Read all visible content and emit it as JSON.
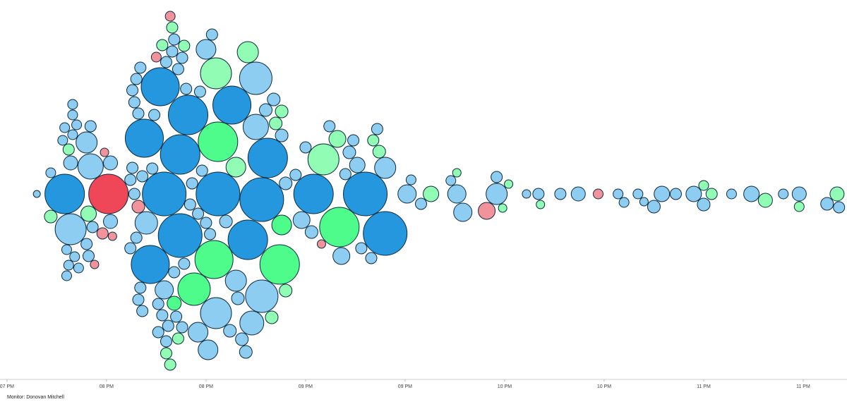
{
  "chart_data": {
    "type": "beeswarm",
    "caption": "Monitor: Donovan Mitchell",
    "xlim": [
      18.965,
      23.22
    ],
    "xticks": [
      {
        "value": 19,
        "label": "07 PM"
      },
      {
        "value": 19.5,
        "label": "08 PM"
      },
      {
        "value": 20,
        "label": "08 PM"
      },
      {
        "value": 20.5,
        "label": "09 PM"
      },
      {
        "value": 21,
        "label": "09 PM"
      },
      {
        "value": 21.5,
        "label": "10 PM"
      },
      {
        "value": 22,
        "label": "10 PM"
      },
      {
        "value": 22.5,
        "label": "11 PM"
      },
      {
        "value": 23,
        "label": "11 PM"
      }
    ],
    "points": [
      {
        "x": 19.15,
        "size": 5,
        "color": "#8ecdf2"
      },
      {
        "x": 19.22,
        "size": 9,
        "color": "#90fcb4"
      },
      {
        "x": 19.22,
        "size": 7,
        "color": "#8ecdf2"
      },
      {
        "x": 19.29,
        "size": 28,
        "color": "#2497de"
      },
      {
        "x": 19.32,
        "size": 10,
        "color": "#8ecdf2"
      },
      {
        "x": 19.31,
        "size": 8,
        "color": "#90fcb4"
      },
      {
        "x": 19.32,
        "size": 22,
        "color": "#8ecdf2"
      },
      {
        "x": 19.28,
        "size": 7,
        "color": "#8ecdf2"
      },
      {
        "x": 19.3,
        "size": 7,
        "color": "#8ecdf2"
      },
      {
        "x": 19.33,
        "size": 7,
        "color": "#8ecdf2"
      },
      {
        "x": 19.34,
        "size": 7,
        "color": "#8ecdf2"
      },
      {
        "x": 19.35,
        "size": 7,
        "color": "#8ecdf2"
      },
      {
        "x": 19.31,
        "size": 7,
        "color": "#8ecdf2"
      },
      {
        "x": 19.29,
        "size": 7,
        "color": "#8ecdf2"
      },
      {
        "x": 19.33,
        "size": 7,
        "color": "#8ecdf2"
      },
      {
        "x": 19.36,
        "size": 7,
        "color": "#8ecdf2"
      },
      {
        "x": 19.3,
        "size": 7,
        "color": "#8ecdf2"
      },
      {
        "x": 19.33,
        "size": 7,
        "color": "#8ecdf2"
      },
      {
        "x": 19.41,
        "size": 11,
        "color": "#90fcb4"
      },
      {
        "x": 19.4,
        "size": 15,
        "color": "#8ecdf2"
      },
      {
        "x": 19.42,
        "size": 18,
        "color": "#8ecdf2"
      },
      {
        "x": 19.4,
        "size": 8,
        "color": "#8ecdf2"
      },
      {
        "x": 19.41,
        "size": 8,
        "color": "#8ecdf2"
      },
      {
        "x": 19.42,
        "size": 8,
        "color": "#8ecdf2"
      },
      {
        "x": 19.43,
        "size": 8,
        "color": "#8ecdf2"
      },
      {
        "x": 19.51,
        "size": 28,
        "color": "#f04758"
      },
      {
        "x": 19.52,
        "size": 10,
        "color": "#8ecdf2"
      },
      {
        "x": 19.52,
        "size": 10,
        "color": "#8ecdf2"
      },
      {
        "x": 19.48,
        "size": 8,
        "color": "#f2939c"
      },
      {
        "x": 19.53,
        "size": 6,
        "color": "#f2939c"
      },
      {
        "x": 19.44,
        "size": 6,
        "color": "#f2939c"
      },
      {
        "x": 19.49,
        "size": 6,
        "color": "#f2939c"
      },
      {
        "x": 19.62,
        "size": 8,
        "color": "#8ecdf2"
      },
      {
        "x": 19.63,
        "size": 8,
        "color": "#8ecdf2"
      },
      {
        "x": 19.64,
        "size": 8,
        "color": "#8ecdf2"
      },
      {
        "x": 19.65,
        "size": 8,
        "color": "#8ecdf2"
      },
      {
        "x": 19.66,
        "size": 8,
        "color": "#8ecdf2"
      },
      {
        "x": 19.67,
        "size": 8,
        "color": "#8ecdf2"
      },
      {
        "x": 19.68,
        "size": 8,
        "color": "#8ecdf2"
      },
      {
        "x": 19.62,
        "size": 8,
        "color": "#8ecdf2"
      },
      {
        "x": 19.64,
        "size": 8,
        "color": "#8ecdf2"
      },
      {
        "x": 19.66,
        "size": 8,
        "color": "#8ecdf2"
      },
      {
        "x": 19.68,
        "size": 8,
        "color": "#8ecdf2"
      },
      {
        "x": 19.63,
        "size": 8,
        "color": "#8ecdf2"
      },
      {
        "x": 19.65,
        "size": 8,
        "color": "#8ecdf2"
      },
      {
        "x": 19.67,
        "size": 8,
        "color": "#8ecdf2"
      },
      {
        "x": 19.66,
        "size": 9,
        "color": "#f2939c"
      },
      {
        "x": 19.69,
        "size": 27,
        "color": "#2497de"
      },
      {
        "x": 19.72,
        "size": 27,
        "color": "#2497de"
      },
      {
        "x": 19.77,
        "size": 27,
        "color": "#2497de"
      },
      {
        "x": 19.79,
        "size": 31,
        "color": "#2497de"
      },
      {
        "x": 19.87,
        "size": 31,
        "color": "#2497de"
      },
      {
        "x": 19.87,
        "size": 28,
        "color": "#2497de"
      },
      {
        "x": 19.91,
        "size": 28,
        "color": "#2497de"
      },
      {
        "x": 19.7,
        "size": 16,
        "color": "#8ecdf2"
      },
      {
        "x": 19.79,
        "size": 13,
        "color": "#8ecdf2"
      },
      {
        "x": 19.75,
        "size": 7,
        "color": "#f2939c"
      },
      {
        "x": 19.82,
        "size": 7,
        "color": "#f2939c"
      },
      {
        "x": 19.73,
        "size": 8,
        "color": "#8ecdf2"
      },
      {
        "x": 19.74,
        "size": 8,
        "color": "#8ecdf2"
      },
      {
        "x": 19.76,
        "size": 8,
        "color": "#8ecdf2"
      },
      {
        "x": 19.78,
        "size": 8,
        "color": "#8ecdf2"
      },
      {
        "x": 19.8,
        "size": 8,
        "color": "#8ecdf2"
      },
      {
        "x": 19.81,
        "size": 8,
        "color": "#8ecdf2"
      },
      {
        "x": 19.83,
        "size": 8,
        "color": "#8ecdf2"
      },
      {
        "x": 19.84,
        "size": 8,
        "color": "#8ecdf2"
      },
      {
        "x": 19.85,
        "size": 8,
        "color": "#8ecdf2"
      },
      {
        "x": 19.86,
        "size": 8,
        "color": "#8ecdf2"
      },
      {
        "x": 19.88,
        "size": 8,
        "color": "#8ecdf2"
      },
      {
        "x": 19.89,
        "size": 8,
        "color": "#8ecdf2"
      },
      {
        "x": 19.9,
        "size": 8,
        "color": "#8ecdf2"
      },
      {
        "x": 19.92,
        "size": 8,
        "color": "#8ecdf2"
      },
      {
        "x": 19.93,
        "size": 8,
        "color": "#8ecdf2"
      },
      {
        "x": 19.76,
        "size": 8,
        "color": "#8ecdf2"
      },
      {
        "x": 19.8,
        "size": 8,
        "color": "#8ecdf2"
      },
      {
        "x": 19.84,
        "size": 8,
        "color": "#8ecdf2"
      },
      {
        "x": 19.88,
        "size": 8,
        "color": "#8ecdf2"
      },
      {
        "x": 19.8,
        "size": 8,
        "color": "#90fcb4"
      },
      {
        "x": 19.83,
        "size": 8,
        "color": "#90fcb4"
      },
      {
        "x": 19.86,
        "size": 8,
        "color": "#90fcb4"
      },
      {
        "x": 19.89,
        "size": 8,
        "color": "#90fcb4"
      },
      {
        "x": 19.78,
        "size": 8,
        "color": "#90fcb4"
      },
      {
        "x": 19.82,
        "size": 8,
        "color": "#90fcb4"
      },
      {
        "x": 19.84,
        "size": 10,
        "color": "#4dfc8a"
      },
      {
        "x": 19.94,
        "size": 23,
        "color": "#4dfc8a"
      },
      {
        "x": 20.04,
        "size": 27,
        "color": "#4dfc8a"
      },
      {
        "x": 19.96,
        "size": 14,
        "color": "#8ecdf2"
      },
      {
        "x": 20.0,
        "size": 14,
        "color": "#8ecdf2"
      },
      {
        "x": 20.01,
        "size": 14,
        "color": "#8ecdf2"
      },
      {
        "x": 19.96,
        "size": 8,
        "color": "#8ecdf2"
      },
      {
        "x": 19.98,
        "size": 8,
        "color": "#8ecdf2"
      },
      {
        "x": 20.0,
        "size": 8,
        "color": "#8ecdf2"
      },
      {
        "x": 20.02,
        "size": 8,
        "color": "#8ecdf2"
      },
      {
        "x": 19.97,
        "size": 8,
        "color": "#8ecdf2"
      },
      {
        "x": 20.03,
        "size": 8,
        "color": "#8ecdf2"
      },
      {
        "x": 20.13,
        "size": 27,
        "color": "#2497de"
      },
      {
        "x": 20.31,
        "size": 28,
        "color": "#2497de"
      },
      {
        "x": 20.06,
        "size": 31,
        "color": "#2497de"
      },
      {
        "x": 20.28,
        "size": 31,
        "color": "#2497de"
      },
      {
        "x": 20.21,
        "size": 28,
        "color": "#2497de"
      },
      {
        "x": 20.28,
        "size": 23,
        "color": "#8ecdf2"
      },
      {
        "x": 20.05,
        "size": 22,
        "color": "#8ecdf2"
      },
      {
        "x": 20.25,
        "size": 23,
        "color": "#8ecdf2"
      },
      {
        "x": 20.25,
        "size": 18,
        "color": "#8ecdf2"
      },
      {
        "x": 20.23,
        "size": 17,
        "color": "#8ecdf2"
      },
      {
        "x": 20.15,
        "size": 15,
        "color": "#8ecdf2"
      },
      {
        "x": 20.37,
        "size": 28,
        "color": "#4dfc8a"
      },
      {
        "x": 20.06,
        "size": 28,
        "color": "#4dfc8a"
      },
      {
        "x": 20.05,
        "size": 22,
        "color": "#90fcb4"
      },
      {
        "x": 20.15,
        "size": 14,
        "color": "#90fcb4"
      },
      {
        "x": 20.21,
        "size": 15,
        "color": "#90fcb4"
      },
      {
        "x": 20.1,
        "size": 9,
        "color": "#8ecdf2"
      },
      {
        "x": 20.12,
        "size": 9,
        "color": "#8ecdf2"
      },
      {
        "x": 20.18,
        "size": 9,
        "color": "#8ecdf2"
      },
      {
        "x": 20.2,
        "size": 9,
        "color": "#8ecdf2"
      },
      {
        "x": 20.3,
        "size": 9,
        "color": "#8ecdf2"
      },
      {
        "x": 20.34,
        "size": 9,
        "color": "#8ecdf2"
      },
      {
        "x": 20.38,
        "size": 9,
        "color": "#8ecdf2"
      },
      {
        "x": 20.4,
        "size": 9,
        "color": "#8ecdf2"
      },
      {
        "x": 20.16,
        "size": 9,
        "color": "#8ecdf2"
      },
      {
        "x": 20.35,
        "size": 9,
        "color": "#90fcb4"
      },
      {
        "x": 20.38,
        "size": 9,
        "color": "#90fcb4"
      },
      {
        "x": 20.4,
        "size": 9,
        "color": "#90fcb4"
      },
      {
        "x": 20.33,
        "size": 9,
        "color": "#90fcb4"
      },
      {
        "x": 20.38,
        "size": 14,
        "color": "#4dfc8a"
      },
      {
        "x": 20.54,
        "size": 28,
        "color": "#2497de"
      },
      {
        "x": 20.8,
        "size": 31,
        "color": "#2497de"
      },
      {
        "x": 20.9,
        "size": 31,
        "color": "#2497de"
      },
      {
        "x": 20.67,
        "size": 28,
        "color": "#4dfc8a"
      },
      {
        "x": 20.59,
        "size": 22,
        "color": "#90fcb4"
      },
      {
        "x": 20.66,
        "size": 12,
        "color": "#90fcb4"
      },
      {
        "x": 20.9,
        "size": 15,
        "color": "#8ecdf2"
      },
      {
        "x": 20.68,
        "size": 12,
        "color": "#8ecdf2"
      },
      {
        "x": 20.76,
        "size": 11,
        "color": "#8ecdf2"
      },
      {
        "x": 20.48,
        "size": 12,
        "color": "#8ecdf2"
      },
      {
        "x": 20.72,
        "size": 9,
        "color": "#8ecdf2"
      },
      {
        "x": 20.53,
        "size": 9,
        "color": "#8ecdf2"
      },
      {
        "x": 20.58,
        "size": 6,
        "color": "#f2939c"
      },
      {
        "x": 20.84,
        "size": 8,
        "color": "#90fcb4"
      },
      {
        "x": 20.87,
        "size": 9,
        "color": "#90fcb4"
      },
      {
        "x": 20.45,
        "size": 8,
        "color": "#8ecdf2"
      },
      {
        "x": 20.5,
        "size": 8,
        "color": "#8ecdf2"
      },
      {
        "x": 20.62,
        "size": 8,
        "color": "#8ecdf2"
      },
      {
        "x": 20.7,
        "size": 8,
        "color": "#8ecdf2"
      },
      {
        "x": 20.74,
        "size": 8,
        "color": "#8ecdf2"
      },
      {
        "x": 20.78,
        "size": 8,
        "color": "#8ecdf2"
      },
      {
        "x": 20.83,
        "size": 8,
        "color": "#8ecdf2"
      },
      {
        "x": 20.86,
        "size": 8,
        "color": "#8ecdf2"
      },
      {
        "x": 21.01,
        "size": 13,
        "color": "#8ecdf2"
      },
      {
        "x": 21.08,
        "size": 8,
        "color": "#8ecdf2"
      },
      {
        "x": 21.13,
        "size": 11,
        "color": "#90fcb4"
      },
      {
        "x": 21.03,
        "size": 7,
        "color": "#8ecdf2"
      },
      {
        "x": 21.23,
        "size": 7,
        "color": "#8ecdf2"
      },
      {
        "x": 21.26,
        "size": 13,
        "color": "#8ecdf2"
      },
      {
        "x": 21.26,
        "size": 6,
        "color": "#90fcb4"
      },
      {
        "x": 21.29,
        "size": 13,
        "color": "#8ecdf2"
      },
      {
        "x": 21.41,
        "size": 12,
        "color": "#f2939c"
      },
      {
        "x": 21.46,
        "size": 15,
        "color": "#8ecdf2"
      },
      {
        "x": 21.46,
        "size": 8,
        "color": "#8ecdf2"
      },
      {
        "x": 21.49,
        "size": 6,
        "color": "#90fcb4"
      },
      {
        "x": 21.52,
        "size": 6,
        "color": "#90fcb4"
      },
      {
        "x": 21.61,
        "size": 6,
        "color": "#8ecdf2"
      },
      {
        "x": 21.67,
        "size": 8,
        "color": "#8ecdf2"
      },
      {
        "x": 21.68,
        "size": 6,
        "color": "#90fcb4"
      },
      {
        "x": 21.78,
        "size": 8,
        "color": "#8ecdf2"
      },
      {
        "x": 21.87,
        "size": 10,
        "color": "#8ecdf2"
      },
      {
        "x": 21.97,
        "size": 7,
        "color": "#f2939c"
      },
      {
        "x": 22.07,
        "size": 7,
        "color": "#8ecdf2"
      },
      {
        "x": 22.1,
        "size": 7,
        "color": "#8ecdf2"
      },
      {
        "x": 22.17,
        "size": 7,
        "color": "#8ecdf2"
      },
      {
        "x": 22.2,
        "size": 6,
        "color": "#8ecdf2"
      },
      {
        "x": 22.25,
        "size": 9,
        "color": "#8ecdf2"
      },
      {
        "x": 22.29,
        "size": 11,
        "color": "#8ecdf2"
      },
      {
        "x": 22.36,
        "size": 8,
        "color": "#8ecdf2"
      },
      {
        "x": 22.45,
        "size": 11,
        "color": "#8ecdf2"
      },
      {
        "x": 22.5,
        "size": 9,
        "color": "#8ecdf2"
      },
      {
        "x": 22.5,
        "size": 7,
        "color": "#90fcb4"
      },
      {
        "x": 22.54,
        "size": 8,
        "color": "#90fcb4"
      },
      {
        "x": 22.64,
        "size": 7,
        "color": "#8ecdf2"
      },
      {
        "x": 22.74,
        "size": 11,
        "color": "#8ecdf2"
      },
      {
        "x": 22.81,
        "size": 10,
        "color": "#90fcb4"
      },
      {
        "x": 22.9,
        "size": 7,
        "color": "#8ecdf2"
      },
      {
        "x": 22.98,
        "size": 10,
        "color": "#8ecdf2"
      },
      {
        "x": 22.98,
        "size": 7,
        "color": "#90fcb4"
      },
      {
        "x": 23.12,
        "size": 9,
        "color": "#8ecdf2"
      },
      {
        "x": 23.17,
        "size": 10,
        "color": "#90fcb4"
      },
      {
        "x": 23.18,
        "size": 8,
        "color": "#8ecdf2"
      }
    ]
  }
}
